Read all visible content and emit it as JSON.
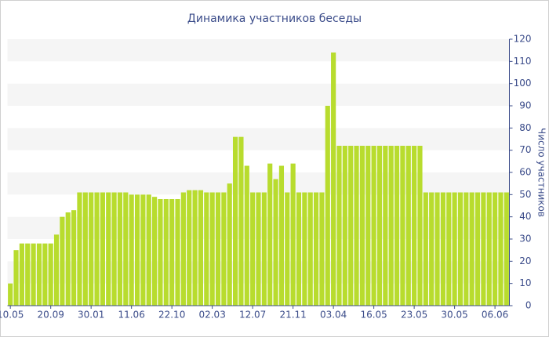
{
  "chart_data": {
    "type": "bar",
    "title": "Динамика участников беседы",
    "y_axis_label": "Число участников",
    "categories": [
      "10.05",
      null,
      null,
      null,
      null,
      null,
      null,
      "20.09",
      null,
      null,
      null,
      null,
      null,
      null,
      "30.01",
      null,
      null,
      null,
      null,
      null,
      null,
      "11.06",
      null,
      null,
      null,
      null,
      null,
      null,
      "22.10",
      null,
      null,
      null,
      null,
      null,
      null,
      "02.03",
      null,
      null,
      null,
      null,
      null,
      null,
      "12.07",
      null,
      null,
      null,
      null,
      null,
      null,
      "21.11",
      null,
      null,
      null,
      null,
      null,
      null,
      "03.04",
      null,
      null,
      null,
      null,
      null,
      null,
      "16.05",
      null,
      null,
      null,
      null,
      null,
      null,
      "23.05",
      null,
      null,
      null,
      null,
      null,
      null,
      "30.05",
      null,
      null,
      null,
      null,
      null,
      null,
      "06.06",
      null,
      null
    ],
    "values": [
      10,
      25,
      28,
      28,
      28,
      28,
      28,
      28,
      32,
      40,
      42,
      43,
      51,
      51,
      51,
      51,
      51,
      51,
      51,
      51,
      51,
      50,
      50,
      50,
      50,
      49,
      48,
      48,
      48,
      48,
      51,
      52,
      52,
      52,
      51,
      51,
      51,
      51,
      55,
      76,
      76,
      63,
      51,
      51,
      51,
      64,
      57,
      63,
      51,
      64,
      51,
      51,
      51,
      51,
      51,
      90,
      114,
      72,
      72,
      72,
      72,
      72,
      72,
      72,
      72,
      72,
      72,
      72,
      72,
      72,
      72,
      72,
      51,
      51,
      51,
      51,
      51,
      51,
      51,
      51,
      51,
      51,
      51,
      51,
      51,
      51,
      51
    ],
    "color": "#b8dc2e",
    "ylim": [
      0,
      120
    ],
    "yticks": [
      0,
      10,
      20,
      30,
      40,
      50,
      60,
      70,
      80,
      90,
      100,
      110,
      120
    ],
    "y_axis_side": "right",
    "grid": true
  }
}
